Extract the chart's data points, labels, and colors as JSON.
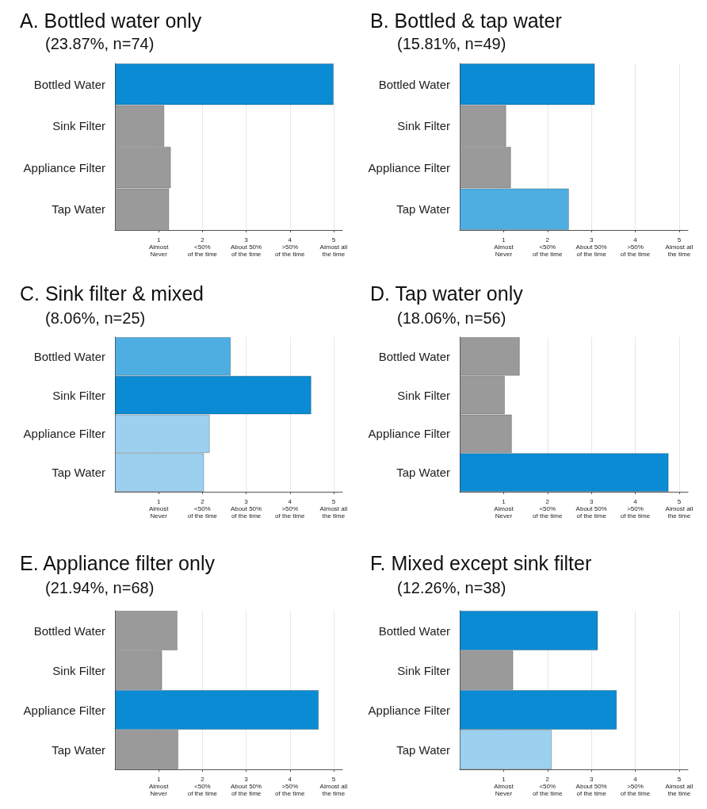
{
  "chart_data": [
    {
      "type": "bar",
      "orientation": "horizontal",
      "title": "A. Bottled water only",
      "subtitle": "(23.87%, n=74)",
      "categories": [
        "Bottled Water",
        "Sink Filter",
        "Appliance Filter",
        "Tap Water"
      ],
      "values": [
        5.0,
        1.13,
        1.28,
        1.24
      ],
      "colors": [
        "#0b8bd3",
        "#9a9a9a",
        "#9a9a9a",
        "#9a9a9a"
      ],
      "xlim": [
        0,
        5.2
      ],
      "xticks": [
        {
          "value": 1,
          "label": "1\nAlmost\nNever"
        },
        {
          "value": 2,
          "label": "2\n<50%\nof the time"
        },
        {
          "value": 3,
          "label": "3\nAbout 50%\nof the time"
        },
        {
          "value": 4,
          "label": "4\n>50%\nof the time"
        },
        {
          "value": 5,
          "label": "5\nAlmost all\nthe time"
        }
      ],
      "grid": "x"
    },
    {
      "type": "bar",
      "orientation": "horizontal",
      "title": "B. Bottled & tap water",
      "subtitle": "(15.81%, n=49)",
      "categories": [
        "Bottled Water",
        "Sink Filter",
        "Appliance Filter",
        "Tap Water"
      ],
      "values": [
        3.08,
        1.06,
        1.17,
        2.49
      ],
      "colors": [
        "#0b8bd3",
        "#9a9a9a",
        "#9a9a9a",
        "#4eaee2"
      ],
      "xlim": [
        0,
        5.2
      ],
      "xticks": [
        {
          "value": 1,
          "label": "1\nAlmost\nNever"
        },
        {
          "value": 2,
          "label": "2\n<50%\nof the time"
        },
        {
          "value": 3,
          "label": "3\nAbout 50%\nof the time"
        },
        {
          "value": 4,
          "label": "4\n>50%\nof the time"
        },
        {
          "value": 5,
          "label": "5\nAlmost all\nthe time"
        }
      ],
      "grid": "x"
    },
    {
      "type": "bar",
      "orientation": "horizontal",
      "title": "C. Sink filter & mixed",
      "subtitle": "(8.06%, n=25)",
      "categories": [
        "Bottled Water",
        "Sink Filter",
        "Appliance Filter",
        "Tap Water"
      ],
      "values": [
        2.65,
        4.49,
        2.17,
        2.04
      ],
      "colors": [
        "#4eaee2",
        "#0b8bd3",
        "#9bd0ee",
        "#9bd0ee"
      ],
      "xlim": [
        0,
        5.2
      ],
      "xticks": [
        {
          "value": 1,
          "label": "1\nAlmost\nNever"
        },
        {
          "value": 2,
          "label": "2\n<50%\nof the time"
        },
        {
          "value": 3,
          "label": "3\nAbout 50%\nof the time"
        },
        {
          "value": 4,
          "label": "4\n>50%\nof the time"
        },
        {
          "value": 5,
          "label": "5\nAlmost all\nthe time"
        }
      ],
      "grid": "x"
    },
    {
      "type": "bar",
      "orientation": "horizontal",
      "title": "D. Tap water only",
      "subtitle": "(18.06%, n=56)",
      "categories": [
        "Bottled Water",
        "Sink Filter",
        "Appliance Filter",
        "Tap Water"
      ],
      "values": [
        1.37,
        1.03,
        1.19,
        4.76
      ],
      "colors": [
        "#9a9a9a",
        "#9a9a9a",
        "#9a9a9a",
        "#0b8bd3"
      ],
      "xlim": [
        0,
        5.2
      ],
      "xticks": [
        {
          "value": 1,
          "label": "1\nAlmost\nNever"
        },
        {
          "value": 2,
          "label": "2\n<50%\nof the time"
        },
        {
          "value": 3,
          "label": "3\nAbout 50%\nof the time"
        },
        {
          "value": 4,
          "label": "4\n>50%\nof the time"
        },
        {
          "value": 5,
          "label": "5\nAlmost all\nthe time"
        }
      ],
      "grid": "x"
    },
    {
      "type": "bar",
      "orientation": "horizontal",
      "title": "E. Appliance filter only",
      "subtitle": "(21.94%, n=68)",
      "categories": [
        "Bottled Water",
        "Sink Filter",
        "Appliance Filter",
        "Tap Water"
      ],
      "values": [
        1.43,
        1.08,
        4.66,
        1.45
      ],
      "colors": [
        "#9a9a9a",
        "#9a9a9a",
        "#0b8bd3",
        "#9a9a9a"
      ],
      "xlim": [
        0,
        5.2
      ],
      "xticks": [
        {
          "value": 1,
          "label": "1\nAlmost\nNever"
        },
        {
          "value": 2,
          "label": "2\n<50%\nof the time"
        },
        {
          "value": 3,
          "label": "3\nAbout 50%\nof the time"
        },
        {
          "value": 4,
          "label": "4\n>50%\nof the time"
        },
        {
          "value": 5,
          "label": "5\nAlmost all\nthe time"
        }
      ],
      "grid": "x"
    },
    {
      "type": "bar",
      "orientation": "horizontal",
      "title": "F. Mixed except sink filter",
      "subtitle": "(12.26%, n=38)",
      "categories": [
        "Bottled Water",
        "Sink Filter",
        "Appliance Filter",
        "Tap Water"
      ],
      "values": [
        3.15,
        1.22,
        3.58,
        2.1
      ],
      "colors": [
        "#0b8bd3",
        "#9a9a9a",
        "#0b8bd3",
        "#9bd0ee"
      ],
      "xlim": [
        0,
        5.2
      ],
      "xticks": [
        {
          "value": 1,
          "label": "1\nAlmost\nNever"
        },
        {
          "value": 2,
          "label": "2\n<50%\nof the time"
        },
        {
          "value": 3,
          "label": "3\nAbout 50%\nof the time"
        },
        {
          "value": 4,
          "label": "4\n>50%\nof the time"
        },
        {
          "value": 5,
          "label": "5\nAlmost all\nthe time"
        }
      ],
      "grid": "x"
    }
  ]
}
